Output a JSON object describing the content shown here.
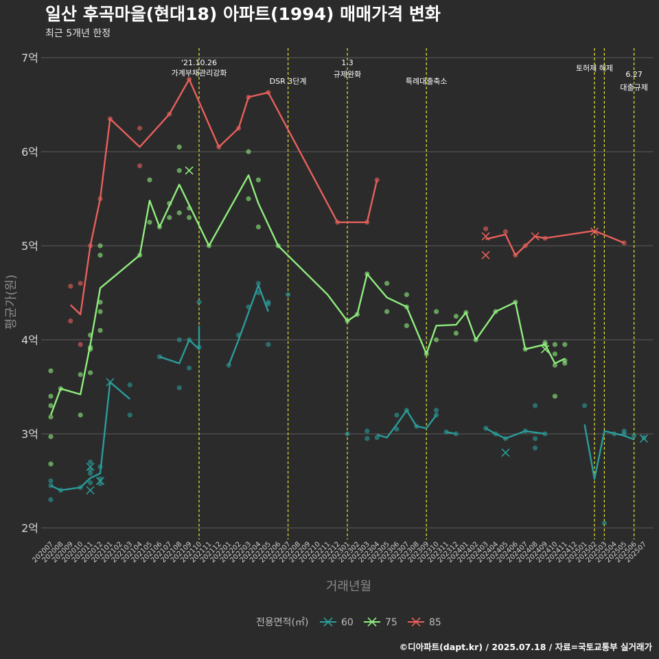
{
  "header": {
    "title": "일산 후곡마을(현대18) 아파트(1994) 매매가격 변화",
    "subtitle": "최근 5개년 한정"
  },
  "caption": "©디아파트(dapt.kr) / 2025.07.18 / 자료=국토교통부 실거래가",
  "legend": {
    "title": "전용면적(㎡)",
    "items": [
      {
        "label": "60",
        "color": "#2a9d9a"
      },
      {
        "label": "75",
        "color": "#90ee7e"
      },
      {
        "label": "85",
        "color": "#e8605c"
      }
    ]
  },
  "chart_data": {
    "type": "line",
    "xlabel": "거래년월",
    "ylabel": "평균가(원)",
    "ylim": [
      1.9,
      7.1
    ],
    "yticks": [
      {
        "value": 2,
        "label": "2억"
      },
      {
        "value": 3,
        "label": "3억"
      },
      {
        "value": 4,
        "label": "4억"
      },
      {
        "value": 5,
        "label": "5억"
      },
      {
        "value": 6,
        "label": "6억"
      },
      {
        "value": 7,
        "label": "7억"
      }
    ],
    "grid": true,
    "legend_position": "bottom",
    "categories": [
      "202007",
      "202008",
      "202009",
      "202010",
      "202011",
      "202012",
      "202101",
      "202102",
      "202103",
      "202104",
      "202105",
      "202106",
      "202107",
      "202108",
      "202109",
      "202110",
      "202111",
      "202112",
      "202201",
      "202202",
      "202203",
      "202204",
      "202205",
      "202206",
      "202207",
      "202208",
      "202209",
      "202210",
      "202211",
      "202212",
      "202301",
      "202302",
      "202303",
      "202304",
      "202305",
      "202306",
      "202307",
      "202308",
      "202309",
      "202310",
      "202311",
      "202312",
      "202401",
      "202402",
      "202403",
      "202404",
      "202405",
      "202406",
      "202407",
      "202408",
      "202409",
      "202410",
      "202411",
      "202412",
      "202501",
      "202502",
      "202503",
      "202504",
      "202505",
      "202506",
      "202507"
    ],
    "events": [
      {
        "x": "202110",
        "label": "'21.10.26\n가계부채관리강화"
      },
      {
        "x": "202207",
        "label": "DSR 3단계"
      },
      {
        "x": "202301",
        "label": "1.3\n규제완화"
      },
      {
        "x": "202309",
        "label": "특례대출축소"
      },
      {
        "x": "202502",
        "label": "토허제 해제"
      },
      {
        "x": "202503",
        "label": ""
      },
      {
        "x": "202506",
        "label": "6.27\n대출규제"
      }
    ],
    "series": [
      {
        "name": "60",
        "color": "#2a9d9a",
        "line": [
          [
            [
              "202007",
              2.45
            ],
            [
              "202008",
              2.4
            ],
            [
              "202010",
              2.43
            ],
            [
              "202011",
              2.53
            ],
            [
              "202012",
              2.58
            ],
            [
              "202101",
              3.55
            ],
            [
              "202103",
              3.37
            ]
          ],
          [
            [
              "202106",
              3.82
            ],
            [
              "202108",
              3.75
            ],
            [
              "202109",
              4.0
            ],
            [
              "202110",
              3.9
            ],
            [
              "202110",
              4.15
            ]
          ],
          [
            [
              "202201",
              3.73
            ],
            [
              "202202",
              4.0
            ],
            [
              "202204",
              4.58
            ],
            [
              "202205",
              4.3
            ]
          ],
          [
            [
              "202304",
              2.99
            ],
            [
              "202305",
              2.96
            ],
            [
              "202306",
              3.1
            ],
            [
              "202307",
              3.25
            ],
            [
              "202308",
              3.08
            ],
            [
              "202309",
              3.06
            ],
            [
              "202310",
              3.2
            ]
          ],
          [
            [
              "202311",
              3.02
            ],
            [
              "202312",
              3.0
            ]
          ],
          [
            [
              "202403",
              3.06
            ],
            [
              "202404",
              3.0
            ],
            [
              "202405",
              2.95
            ],
            [
              "202407",
              3.03
            ],
            [
              "202409",
              3.0
            ]
          ],
          [
            [
              "202501",
              3.1
            ],
            [
              "202502",
              2.52
            ],
            [
              "202503",
              3.03
            ],
            [
              "202505",
              2.98
            ],
            [
              "202506",
              2.94
            ]
          ]
        ],
        "points": [
          [
            "202007",
            2.3
          ],
          [
            "202007",
            2.45
          ],
          [
            "202007",
            2.5
          ],
          [
            "202008",
            2.4
          ],
          [
            "202010",
            2.43
          ],
          [
            "202011",
            2.48
          ],
          [
            "202011",
            2.58
          ],
          [
            "202011",
            2.62
          ],
          [
            "202011",
            2.7
          ],
          [
            "202012",
            2.47
          ],
          [
            "202012",
            2.52
          ],
          [
            "202012",
            2.65
          ],
          [
            "202103",
            3.52
          ],
          [
            "202103",
            3.2
          ],
          [
            "202106",
            3.82
          ],
          [
            "202108",
            3.49
          ],
          [
            "202108",
            4.0
          ],
          [
            "202109",
            3.7
          ],
          [
            "202109",
            4.0
          ],
          [
            "202110",
            3.92
          ],
          [
            "202110",
            4.4
          ],
          [
            "202201",
            3.73
          ],
          [
            "202202",
            4.05
          ],
          [
            "202203",
            4.35
          ],
          [
            "202204",
            4.5
          ],
          [
            "202204",
            4.6
          ],
          [
            "202205",
            3.95
          ],
          [
            "202205",
            4.38
          ],
          [
            "202205",
            4.4
          ],
          [
            "202207",
            4.48
          ],
          [
            "202301",
            3.0
          ],
          [
            "202303",
            2.95
          ],
          [
            "202303",
            3.03
          ],
          [
            "202304",
            2.96
          ],
          [
            "202306",
            3.2
          ],
          [
            "202306",
            3.05
          ],
          [
            "202307",
            3.25
          ],
          [
            "202308",
            3.08
          ],
          [
            "202310",
            3.25
          ],
          [
            "202310",
            3.2
          ],
          [
            "202311",
            3.02
          ],
          [
            "202312",
            3.0
          ],
          [
            "202403",
            3.06
          ],
          [
            "202404",
            3.0
          ],
          [
            "202405",
            2.95
          ],
          [
            "202407",
            3.03
          ],
          [
            "202408",
            2.85
          ],
          [
            "202408",
            2.95
          ],
          [
            "202408",
            3.3
          ],
          [
            "202409",
            3.0
          ],
          [
            "202501",
            3.3
          ],
          [
            "202503",
            2.05
          ],
          [
            "202504",
            3.0
          ],
          [
            "202505",
            3.03
          ],
          [
            "202505",
            3.0
          ],
          [
            "202506",
            2.98
          ],
          [
            "202507",
            2.96
          ]
        ],
        "cancelled": [
          [
            "202011",
            2.65
          ],
          [
            "202011",
            2.4
          ],
          [
            "202012",
            2.5
          ],
          [
            "202101",
            3.55
          ],
          [
            "202405",
            2.8
          ],
          [
            "202507",
            2.95
          ]
        ]
      },
      {
        "name": "75",
        "color": "#90ee7e",
        "line": [
          [
            [
              "202007",
              3.2
            ],
            [
              "202008",
              3.48
            ],
            [
              "202010",
              3.42
            ],
            [
              "202011",
              3.95
            ],
            [
              "202012",
              4.55
            ],
            [
              "202104",
              4.9
            ],
            [
              "202105",
              5.48
            ],
            [
              "202106",
              5.2
            ],
            [
              "202108",
              5.65
            ],
            [
              "202111",
              5.0
            ],
            [
              "202203",
              5.75
            ],
            [
              "202204",
              5.45
            ],
            [
              "202206",
              5.0
            ],
            [
              "202211",
              4.48
            ],
            [
              "202301",
              4.2
            ],
            [
              "202302",
              4.27
            ],
            [
              "202303",
              4.7
            ],
            [
              "202305",
              4.45
            ],
            [
              "202307",
              4.35
            ],
            [
              "202309",
              3.85
            ],
            [
              "202310",
              4.15
            ],
            [
              "202312",
              4.16
            ],
            [
              "202401",
              4.29
            ],
            [
              "202402",
              4.0
            ],
            [
              "202404",
              4.3
            ],
            [
              "202406",
              4.4
            ],
            [
              "202407",
              3.9
            ],
            [
              "202409",
              3.95
            ],
            [
              "202410",
              3.75
            ],
            [
              "202411",
              3.8
            ]
          ]
        ],
        "points": [
          [
            "202007",
            3.67
          ],
          [
            "202007",
            3.4
          ],
          [
            "202007",
            3.3
          ],
          [
            "202007",
            3.18
          ],
          [
            "202007",
            2.97
          ],
          [
            "202007",
            2.68
          ],
          [
            "202008",
            3.48
          ],
          [
            "202010",
            3.63
          ],
          [
            "202010",
            3.2
          ],
          [
            "202011",
            4.05
          ],
          [
            "202011",
            3.92
          ],
          [
            "202011",
            3.9
          ],
          [
            "202011",
            3.65
          ],
          [
            "202012",
            5.0
          ],
          [
            "202012",
            4.9
          ],
          [
            "202012",
            4.4
          ],
          [
            "202012",
            4.3
          ],
          [
            "202012",
            4.1
          ],
          [
            "202104",
            4.9
          ],
          [
            "202105",
            5.7
          ],
          [
            "202105",
            5.25
          ],
          [
            "202106",
            5.2
          ],
          [
            "202107",
            5.45
          ],
          [
            "202107",
            5.3
          ],
          [
            "202108",
            6.05
          ],
          [
            "202108",
            5.8
          ],
          [
            "202108",
            5.35
          ],
          [
            "202109",
            5.4
          ],
          [
            "202109",
            5.3
          ],
          [
            "202111",
            5.0
          ],
          [
            "202203",
            6.0
          ],
          [
            "202203",
            5.5
          ],
          [
            "202204",
            5.7
          ],
          [
            "202204",
            5.2
          ],
          [
            "202206",
            5.0
          ],
          [
            "202301",
            4.2
          ],
          [
            "202302",
            4.27
          ],
          [
            "202303",
            4.7
          ],
          [
            "202305",
            4.6
          ],
          [
            "202305",
            4.3
          ],
          [
            "202307",
            4.48
          ],
          [
            "202307",
            4.15
          ],
          [
            "202307",
            4.35
          ],
          [
            "202309",
            3.85
          ],
          [
            "202310",
            4.3
          ],
          [
            "202310",
            4.0
          ],
          [
            "202312",
            4.25
          ],
          [
            "202312",
            4.07
          ],
          [
            "202401",
            4.29
          ],
          [
            "202402",
            4.0
          ],
          [
            "202404",
            4.3
          ],
          [
            "202406",
            4.4
          ],
          [
            "202407",
            3.9
          ],
          [
            "202409",
            3.97
          ],
          [
            "202409",
            3.95
          ],
          [
            "202410",
            3.95
          ],
          [
            "202410",
            3.85
          ],
          [
            "202410",
            3.73
          ],
          [
            "202410",
            3.4
          ],
          [
            "202411",
            3.95
          ],
          [
            "202411",
            3.78
          ],
          [
            "202411",
            3.75
          ]
        ],
        "cancelled": [
          [
            "202109",
            5.8
          ],
          [
            "202409",
            3.9
          ]
        ]
      },
      {
        "name": "85",
        "color": "#e8605c",
        "line": [
          [
            [
              "202009",
              4.37
            ],
            [
              "202010",
              4.27
            ],
            [
              "202011",
              5.0
            ],
            [
              "202012",
              5.5
            ],
            [
              "202101",
              6.35
            ],
            [
              "202104",
              6.05
            ],
            [
              "202107",
              6.4
            ],
            [
              "202109",
              6.77
            ],
            [
              "202112",
              6.05
            ],
            [
              "202202",
              6.25
            ],
            [
              "202203",
              6.58
            ],
            [
              "202205",
              6.63
            ],
            [
              "202212",
              5.25
            ],
            [
              "202303",
              5.25
            ],
            [
              "202304",
              5.7
            ]
          ],
          [
            [
              "202403",
              5.07
            ],
            [
              "202405",
              5.12
            ],
            [
              "202406",
              4.9
            ],
            [
              "202407",
              5.0
            ],
            [
              "202408",
              5.1
            ],
            [
              "202409",
              5.08
            ],
            [
              "202502",
              5.16
            ],
            [
              "202505",
              5.03
            ]
          ]
        ],
        "points": [
          [
            "202009",
            4.57
          ],
          [
            "202009",
            4.2
          ],
          [
            "202010",
            4.6
          ],
          [
            "202010",
            3.95
          ],
          [
            "202011",
            5.0
          ],
          [
            "202012",
            5.5
          ],
          [
            "202101",
            6.35
          ],
          [
            "202104",
            6.25
          ],
          [
            "202104",
            5.85
          ],
          [
            "202107",
            6.4
          ],
          [
            "202109",
            6.77
          ],
          [
            "202112",
            6.05
          ],
          [
            "202202",
            6.25
          ],
          [
            "202203",
            6.58
          ],
          [
            "202205",
            6.63
          ],
          [
            "202212",
            5.25
          ],
          [
            "202303",
            5.25
          ],
          [
            "202304",
            5.7
          ],
          [
            "202403",
            5.18
          ],
          [
            "202405",
            5.15
          ],
          [
            "202406",
            4.9
          ],
          [
            "202407",
            5.0
          ],
          [
            "202409",
            5.08
          ],
          [
            "202505",
            5.03
          ]
        ],
        "cancelled": [
          [
            "202403",
            4.9
          ],
          [
            "202403",
            5.1
          ],
          [
            "202408",
            5.1
          ],
          [
            "202502",
            5.15
          ]
        ]
      }
    ]
  }
}
